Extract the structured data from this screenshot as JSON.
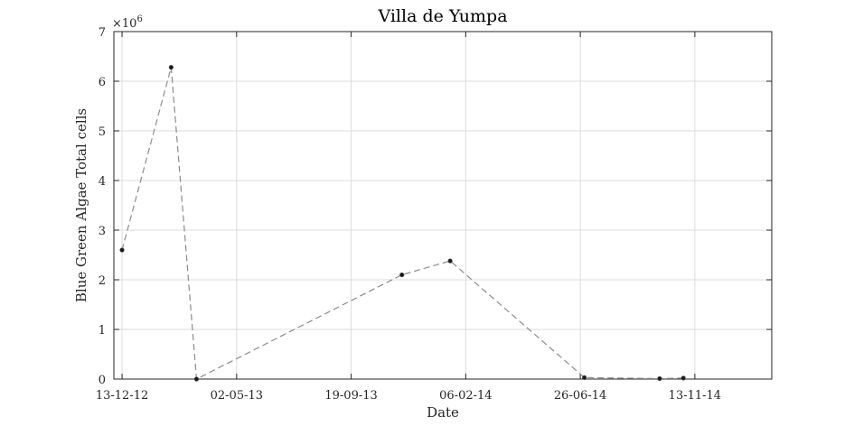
{
  "chart_data": {
    "type": "line",
    "title": "Villa de Yumpa",
    "xlabel": "Date",
    "ylabel": "Blue Green Algae Total cells",
    "y_exponent_label": "×10",
    "y_exponent_power": "6",
    "y_multiplier": 1000000,
    "ylim": [
      0,
      7000000
    ],
    "xlim": [
      "2012-12-03",
      "2015-02-15"
    ],
    "y_ticks": [
      0,
      1000000,
      2000000,
      3000000,
      4000000,
      5000000,
      6000000,
      7000000
    ],
    "y_tick_labels": [
      "0",
      "1",
      "2",
      "3",
      "4",
      "5",
      "6",
      "7"
    ],
    "x_ticks": [
      "2012-12-13",
      "2013-05-02",
      "2013-09-19",
      "2014-02-06",
      "2014-06-26",
      "2014-11-13"
    ],
    "x_tick_labels": [
      "13-12-12",
      "02-05-13",
      "19-09-13",
      "06-02-14",
      "26-06-14",
      "13-11-14"
    ],
    "grid": true,
    "line_style": "dashed",
    "line_color": "#8c8c8c",
    "marker_color": "#1a1a1a",
    "series": [
      {
        "x": [
          "2012-12-13",
          "2013-02-11",
          "2013-03-14",
          "2013-11-20",
          "2014-01-18",
          "2014-07-01",
          "2014-10-01",
          "2014-10-30"
        ],
        "y": [
          2600000,
          6280000,
          0,
          2100000,
          2380000,
          30000,
          10000,
          20000
        ]
      }
    ]
  }
}
